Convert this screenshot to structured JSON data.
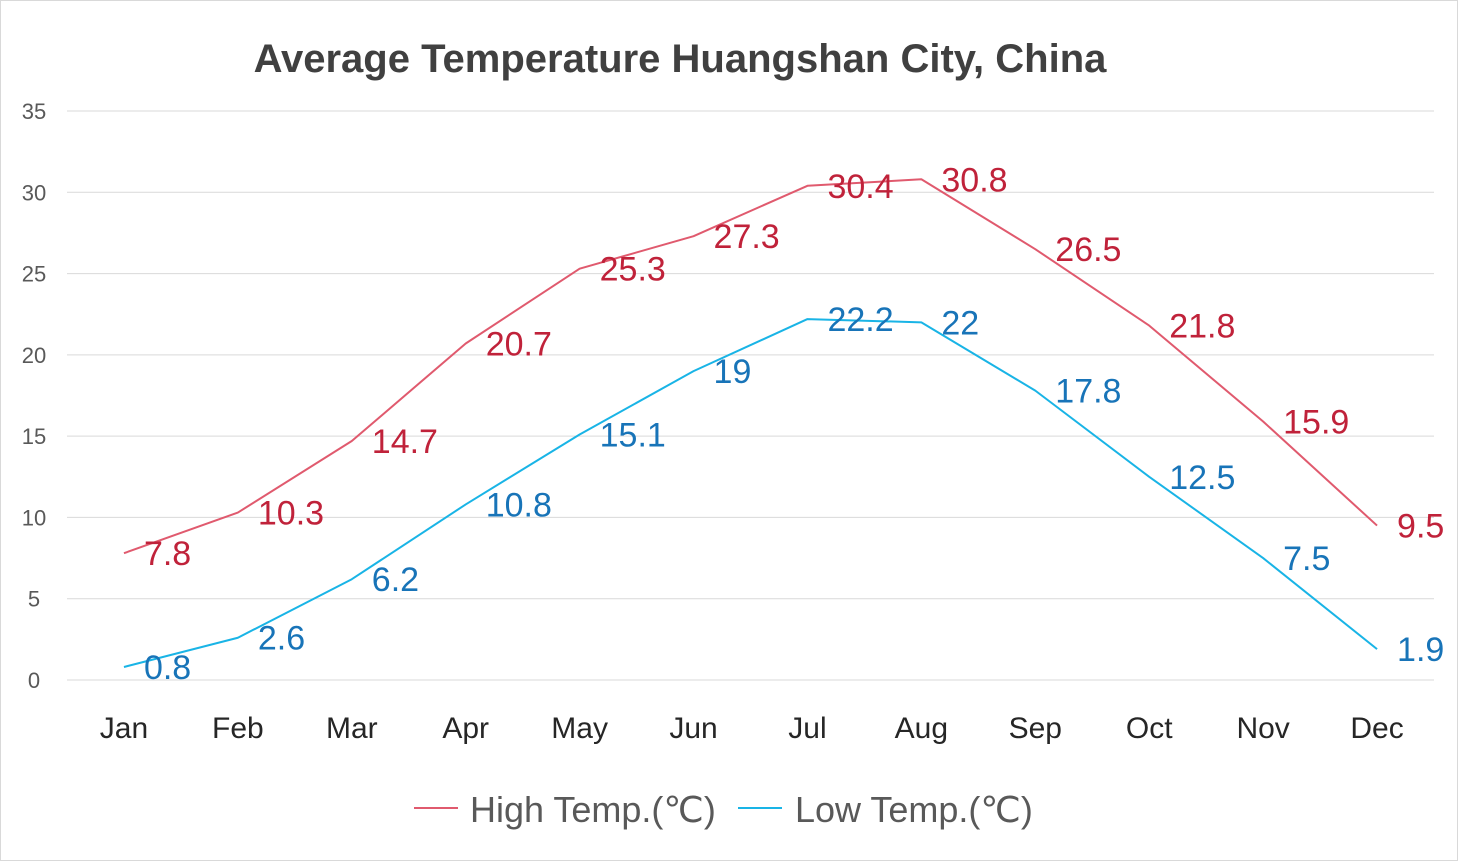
{
  "chart_data": {
    "type": "line",
    "title": "Average Temperature Huangshan City, China",
    "categories": [
      "Jan",
      "Feb",
      "Mar",
      "Apr",
      "May",
      "Jun",
      "Jul",
      "Aug",
      "Sep",
      "Oct",
      "Nov",
      "Dec"
    ],
    "ylim": [
      0,
      35
    ],
    "yticks": [
      0,
      5,
      10,
      15,
      20,
      25,
      30,
      35
    ],
    "grid": true,
    "legend_position": "bottom",
    "series": [
      {
        "name": "High Temp.(℃)",
        "color": "#e05a6e",
        "label_color": "#c0223a",
        "values": [
          7.8,
          10.3,
          14.7,
          20.7,
          25.3,
          27.3,
          30.4,
          30.8,
          26.5,
          21.8,
          15.9,
          9.5
        ]
      },
      {
        "name": "Low Temp.(℃)",
        "color": "#19b4e6",
        "label_color": "#1874b8",
        "values": [
          0.8,
          2.6,
          6.2,
          10.8,
          15.1,
          19,
          22.2,
          22,
          17.8,
          12.5,
          7.5,
          1.9
        ]
      }
    ]
  }
}
